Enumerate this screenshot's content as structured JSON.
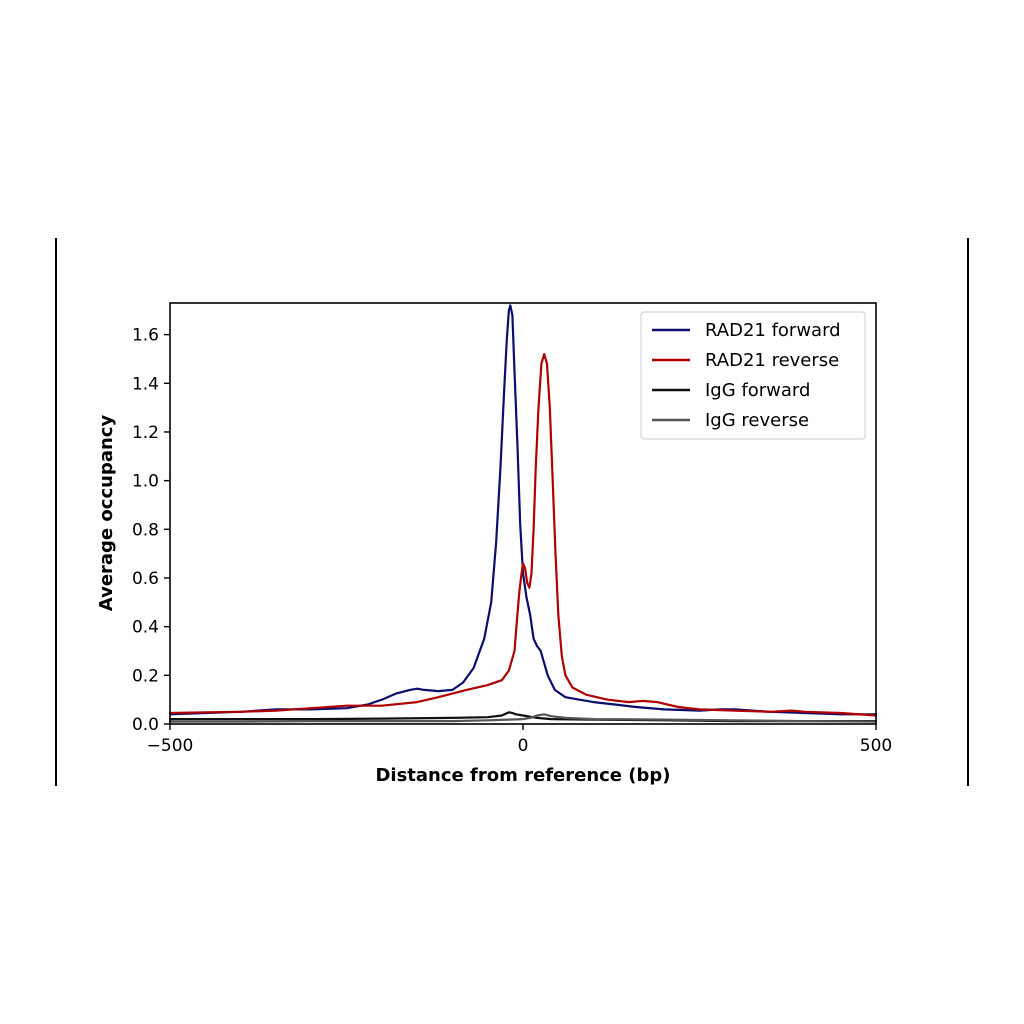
{
  "chart_data": {
    "type": "line",
    "title": "",
    "xlabel": "Distance from reference (bp)",
    "ylabel": "Average occupancy",
    "xlim": [
      -500,
      500
    ],
    "ylim": [
      0,
      1.73
    ],
    "x_ticks": [
      -500,
      0,
      500
    ],
    "x_tick_labels": [
      "−500",
      "0",
      "500"
    ],
    "y_ticks": [
      0.0,
      0.2,
      0.4,
      0.6,
      0.8,
      1.0,
      1.2,
      1.4,
      1.6
    ],
    "y_tick_labels": [
      "0.0",
      "0.2",
      "0.4",
      "0.6",
      "0.8",
      "1.0",
      "1.2",
      "1.4",
      "1.6"
    ],
    "grid": false,
    "legend_position": "top-right",
    "series": [
      {
        "name": "RAD21 forward",
        "color": "#0b0f6b",
        "points": [
          [
            -500,
            0.04
          ],
          [
            -450,
            0.045
          ],
          [
            -400,
            0.05
          ],
          [
            -350,
            0.06
          ],
          [
            -300,
            0.06
          ],
          [
            -250,
            0.065
          ],
          [
            -220,
            0.08
          ],
          [
            -200,
            0.1
          ],
          [
            -180,
            0.125
          ],
          [
            -160,
            0.14
          ],
          [
            -150,
            0.145
          ],
          [
            -140,
            0.14
          ],
          [
            -120,
            0.135
          ],
          [
            -100,
            0.14
          ],
          [
            -85,
            0.17
          ],
          [
            -70,
            0.23
          ],
          [
            -55,
            0.35
          ],
          [
            -45,
            0.5
          ],
          [
            -38,
            0.75
          ],
          [
            -32,
            1.05
          ],
          [
            -27,
            1.35
          ],
          [
            -23,
            1.58
          ],
          [
            -20,
            1.7
          ],
          [
            -18,
            1.72
          ],
          [
            -15,
            1.68
          ],
          [
            -12,
            1.45
          ],
          [
            -8,
            1.15
          ],
          [
            -4,
            0.82
          ],
          [
            0,
            0.62
          ],
          [
            5,
            0.52
          ],
          [
            10,
            0.45
          ],
          [
            15,
            0.35
          ],
          [
            20,
            0.32
          ],
          [
            25,
            0.3
          ],
          [
            30,
            0.25
          ],
          [
            35,
            0.2
          ],
          [
            45,
            0.14
          ],
          [
            60,
            0.11
          ],
          [
            80,
            0.1
          ],
          [
            100,
            0.09
          ],
          [
            130,
            0.08
          ],
          [
            160,
            0.07
          ],
          [
            200,
            0.06
          ],
          [
            250,
            0.055
          ],
          [
            280,
            0.06
          ],
          [
            300,
            0.06
          ],
          [
            350,
            0.05
          ],
          [
            400,
            0.045
          ],
          [
            450,
            0.04
          ],
          [
            500,
            0.04
          ]
        ]
      },
      {
        "name": "RAD21 reverse",
        "color": "#b00000",
        "points": [
          [
            -500,
            0.045
          ],
          [
            -450,
            0.048
          ],
          [
            -400,
            0.05
          ],
          [
            -350,
            0.055
          ],
          [
            -300,
            0.065
          ],
          [
            -250,
            0.075
          ],
          [
            -220,
            0.075
          ],
          [
            -200,
            0.075
          ],
          [
            -150,
            0.09
          ],
          [
            -120,
            0.11
          ],
          [
            -80,
            0.14
          ],
          [
            -50,
            0.16
          ],
          [
            -30,
            0.18
          ],
          [
            -20,
            0.22
          ],
          [
            -12,
            0.3
          ],
          [
            -8,
            0.45
          ],
          [
            -5,
            0.55
          ],
          [
            -2,
            0.62
          ],
          [
            0,
            0.66
          ],
          [
            3,
            0.64
          ],
          [
            6,
            0.58
          ],
          [
            9,
            0.56
          ],
          [
            12,
            0.62
          ],
          [
            15,
            0.8
          ],
          [
            18,
            1.05
          ],
          [
            22,
            1.3
          ],
          [
            26,
            1.48
          ],
          [
            30,
            1.52
          ],
          [
            34,
            1.48
          ],
          [
            38,
            1.3
          ],
          [
            42,
            1.0
          ],
          [
            46,
            0.7
          ],
          [
            50,
            0.45
          ],
          [
            55,
            0.28
          ],
          [
            60,
            0.2
          ],
          [
            70,
            0.15
          ],
          [
            90,
            0.12
          ],
          [
            120,
            0.1
          ],
          [
            150,
            0.09
          ],
          [
            170,
            0.095
          ],
          [
            190,
            0.09
          ],
          [
            220,
            0.07
          ],
          [
            250,
            0.06
          ],
          [
            300,
            0.055
          ],
          [
            350,
            0.05
          ],
          [
            380,
            0.055
          ],
          [
            400,
            0.05
          ],
          [
            450,
            0.045
          ],
          [
            500,
            0.035
          ]
        ]
      },
      {
        "name": "IgG forward",
        "color": "#111111",
        "points": [
          [
            -500,
            0.02
          ],
          [
            -400,
            0.02
          ],
          [
            -300,
            0.02
          ],
          [
            -200,
            0.022
          ],
          [
            -100,
            0.025
          ],
          [
            -50,
            0.028
          ],
          [
            -30,
            0.035
          ],
          [
            -20,
            0.048
          ],
          [
            -15,
            0.045
          ],
          [
            -10,
            0.04
          ],
          [
            0,
            0.035
          ],
          [
            10,
            0.03
          ],
          [
            20,
            0.025
          ],
          [
            40,
            0.02
          ],
          [
            100,
            0.018
          ],
          [
            200,
            0.015
          ],
          [
            300,
            0.012
          ],
          [
            400,
            0.012
          ],
          [
            500,
            0.012
          ]
        ]
      },
      {
        "name": "IgG reverse",
        "color": "#555555",
        "points": [
          [
            -500,
            0.01
          ],
          [
            -400,
            0.01
          ],
          [
            -300,
            0.012
          ],
          [
            -200,
            0.012
          ],
          [
            -100,
            0.012
          ],
          [
            -50,
            0.015
          ],
          [
            -20,
            0.018
          ],
          [
            0,
            0.02
          ],
          [
            10,
            0.025
          ],
          [
            20,
            0.035
          ],
          [
            30,
            0.04
          ],
          [
            40,
            0.032
          ],
          [
            60,
            0.025
          ],
          [
            100,
            0.02
          ],
          [
            200,
            0.018
          ],
          [
            300,
            0.015
          ],
          [
            400,
            0.012
          ],
          [
            500,
            0.01
          ]
        ]
      }
    ]
  }
}
